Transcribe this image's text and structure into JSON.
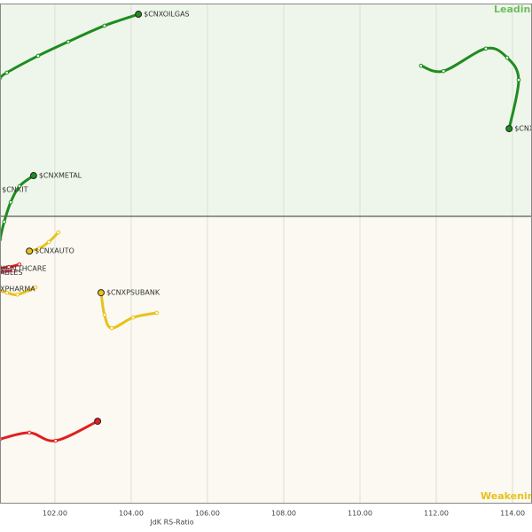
{
  "chart_data": {
    "type": "rrg",
    "x_label": "JdK RS-Ratio",
    "quadrant_labels": {
      "top_right": "Leading",
      "bottom_right": "Weakening"
    },
    "center": [
      100,
      100
    ],
    "xlim": [
      100.56,
      114.51
    ],
    "ylim": [
      92.47,
      105.58
    ],
    "xticks": [
      {
        "value": 102,
        "label": "102.00"
      },
      {
        "value": 104,
        "label": "104.00"
      },
      {
        "value": 106,
        "label": "106.00"
      },
      {
        "value": 108,
        "label": "108.00"
      },
      {
        "value": 110,
        "label": "110.00"
      },
      {
        "value": 112,
        "label": "112.00"
      },
      {
        "value": 114,
        "label": "114.00"
      }
    ],
    "grid": true,
    "series": [
      {
        "name": "$CNXOILGAS",
        "color": "#1e8c1e",
        "x": [
          100.56,
          100.74,
          101.56,
          102.35,
          103.3,
          104.19
        ],
        "y": [
          103.63,
          103.77,
          104.21,
          104.58,
          105.0,
          105.3
        ]
      },
      {
        "name": "$CNXREALTY",
        "color": "#1e8c1e",
        "x": [
          111.6,
          112.19,
          113.3,
          113.86,
          114.16,
          113.91
        ],
        "y": [
          103.95,
          103.81,
          104.4,
          104.16,
          103.58,
          102.3
        ]
      },
      {
        "name": "$CNXMETAL",
        "color": "#1e8c1e",
        "x": [
          100.56,
          100.67,
          100.84,
          101.07,
          101.44
        ],
        "y": [
          99.4,
          99.86,
          100.37,
          100.79,
          101.07
        ]
      },
      {
        "name": "$CNXIT",
        "color": "#1e8c1e",
        "x": [
          100.33,
          100.47
        ],
        "y": [
          100.44,
          100.7
        ]
      },
      {
        "name": "$CNXAUTO",
        "color": "#e8c21a",
        "x": [
          102.09,
          101.84,
          101.58,
          101.33
        ],
        "y": [
          99.58,
          99.33,
          99.16,
          99.09
        ]
      },
      {
        "name": "$CNXPSUBANK",
        "color": "#e8c21a",
        "x": [
          104.67,
          104.05,
          103.49,
          103.3,
          103.21
        ],
        "y": [
          97.47,
          97.35,
          97.07,
          97.42,
          98.0
        ]
      },
      {
        "name": "HEALTHCARE",
        "color": "#e02020",
        "x": [
          101.07,
          100.79,
          100.42
        ],
        "y": [
          98.74,
          98.67,
          98.63
        ]
      },
      {
        "name": "ABLES",
        "color": "#d04060",
        "x": [
          100.91,
          100.42
        ],
        "y": [
          98.58,
          98.53
        ]
      },
      {
        "name": "XPHARMA",
        "color": "#e8c21a",
        "x": [
          101.49,
          101.02,
          100.74,
          100.42
        ],
        "y": [
          98.14,
          97.95,
          98.0,
          98.09
        ]
      },
      {
        "name": null,
        "color": "#e02020",
        "x": [
          100.56,
          101.33,
          102.02,
          103.12
        ],
        "y": [
          94.16,
          94.33,
          94.12,
          94.63
        ]
      }
    ]
  }
}
